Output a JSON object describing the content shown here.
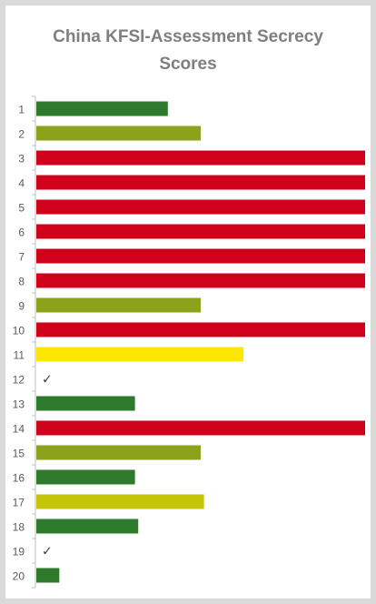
{
  "chart_data": {
    "type": "bar",
    "orientation": "horizontal",
    "title": "China KFSI-Assessment Secrecy Scores",
    "title_lines": [
      "China KFSI-Assessment Secrecy",
      "Scores"
    ],
    "categories": [
      "1",
      "2",
      "3",
      "4",
      "5",
      "6",
      "7",
      "8",
      "9",
      "10",
      "11",
      "12",
      "13",
      "14",
      "15",
      "16",
      "17",
      "18",
      "19",
      "20"
    ],
    "values": [
      40,
      50,
      100,
      100,
      100,
      100,
      100,
      100,
      50,
      100,
      63,
      0,
      30,
      100,
      50,
      30,
      51,
      31,
      0,
      7
    ],
    "xlim": [
      0,
      100
    ],
    "bar_colors": [
      "#2d7a2d",
      "#8ba21a",
      "#d0021b",
      "#d0021b",
      "#d0021b",
      "#d0021b",
      "#d0021b",
      "#d0021b",
      "#8ba21a",
      "#d0021b",
      "#fde600",
      "#2d7a2d",
      "#2d7a2d",
      "#d0021b",
      "#8ba21a",
      "#2d7a2d",
      "#c5c40a",
      "#2d7a2d",
      "#2d7a2d",
      "#2d7a2d"
    ],
    "zero_markers": [
      {
        "category": "12",
        "symbol": "✓"
      },
      {
        "category": "19",
        "symbol": "✓"
      }
    ],
    "legend": "none",
    "grid": false
  }
}
